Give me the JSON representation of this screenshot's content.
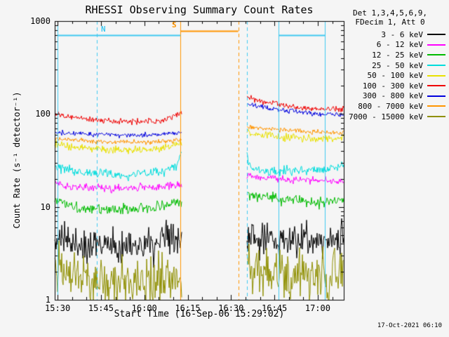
{
  "page": {
    "background": "#f5f5f5"
  },
  "chart_data": {
    "type": "line",
    "title": "RHESSI Observing Summary Count Rates",
    "xlabel": "Start Time (16-Sep-06 15:29:02)",
    "ylabel": "Count Rate (s⁻¹ detector⁻¹)",
    "generated_stamp": "17-Oct-2021 06:10",
    "x_domain_minutes_after_start": [
      0,
      100
    ],
    "x_minor_tick_step": 5,
    "x_ticks": [
      {
        "t": 1,
        "label": "15:30"
      },
      {
        "t": 16,
        "label": "15:45"
      },
      {
        "t": 31,
        "label": "16:00"
      },
      {
        "t": 46,
        "label": "16:15"
      },
      {
        "t": 61,
        "label": "16:30"
      },
      {
        "t": 76,
        "label": "16:45"
      },
      {
        "t": 91,
        "label": "17:00"
      }
    ],
    "y_scale": "log",
    "y_range": [
      1,
      1000
    ],
    "y_ticks": [
      {
        "v": 1,
        "label": "1"
      },
      {
        "v": 10,
        "label": "10"
      },
      {
        "v": 100,
        "label": "100"
      },
      {
        "v": 1000,
        "label": "1000"
      }
    ],
    "legend": {
      "det_line1": "Det 1,3,4,5,6,9,",
      "det_line2": "FDecim 1, Att 0",
      "entries": [
        {
          "label": "3 - 6 keV",
          "color": "#000000"
        },
        {
          "label": "6 - 12 keV",
          "color": "#ff00ff"
        },
        {
          "label": "12 - 25 keV",
          "color": "#00bb00"
        },
        {
          "label": "25 - 50 keV",
          "color": "#00dcdc"
        },
        {
          "label": "50 - 100 keV",
          "color": "#e8e000"
        },
        {
          "label": "100 - 300 keV",
          "color": "#ee0000"
        },
        {
          "label": "300 - 800 keV",
          "color": "#0000dd"
        },
        {
          "label": "800 - 7000 keV",
          "color": "#ff9500"
        },
        {
          "label": "7000 - 15000 keV",
          "color": "#8f8f00"
        }
      ]
    },
    "series": [
      {
        "name": "3 - 6 keV",
        "color": "#000000",
        "noise": 0.09,
        "segments": [
          [
            [
              0,
              4.3
            ],
            [
              15,
              3.9
            ],
            [
              30,
              3.8
            ],
            [
              44,
              4.3
            ]
          ],
          [
            [
              66.5,
              4.8
            ],
            [
              77,
              4.4
            ],
            [
              100,
              4.5
            ]
          ]
        ]
      },
      {
        "name": "6 - 12 keV",
        "color": "#ff00ff",
        "noise": 0.02,
        "segments": [
          [
            [
              0,
              19
            ],
            [
              4,
              16.5
            ],
            [
              20,
              15.8
            ],
            [
              35,
              16.3
            ],
            [
              44,
              17.5
            ]
          ],
          [
            [
              66.5,
              22
            ],
            [
              72,
              20.5
            ],
            [
              86,
              19.5
            ],
            [
              100,
              19
            ]
          ]
        ]
      },
      {
        "name": "12 - 25 keV",
        "color": "#00bb00",
        "noise": 0.03,
        "segments": [
          [
            [
              0,
              12
            ],
            [
              8,
              9.6
            ],
            [
              22,
              9.2
            ],
            [
              36,
              10
            ],
            [
              44,
              11.5
            ]
          ],
          [
            [
              66.5,
              13.5
            ],
            [
              77,
              12.2
            ],
            [
              91,
              11.2
            ],
            [
              100,
              11.8
            ]
          ]
        ]
      },
      {
        "name": "25 - 50 keV",
        "color": "#00dcdc",
        "noise": 0.025,
        "segments": [
          [
            [
              0,
              27
            ],
            [
              8,
              23.5
            ],
            [
              24,
              22
            ],
            [
              38,
              24
            ],
            [
              42.5,
              29
            ],
            [
              44,
              41
            ]
          ],
          [
            [
              66.5,
              36
            ],
            [
              68,
              26
            ],
            [
              77,
              24
            ],
            [
              86,
              24.5
            ],
            [
              95,
              26
            ],
            [
              100,
              29
            ]
          ]
        ]
      },
      {
        "name": "50 - 100 keV",
        "color": "#e8e000",
        "noise": 0.022,
        "segments": [
          [
            [
              0,
              48
            ],
            [
              10,
              43
            ],
            [
              25,
              41
            ],
            [
              38,
              43
            ],
            [
              44,
              50
            ]
          ],
          [
            [
              66.5,
              62
            ],
            [
              77,
              57
            ],
            [
              89,
              54
            ],
            [
              100,
              55
            ]
          ]
        ]
      },
      {
        "name": "100 - 300 keV",
        "color": "#ee0000",
        "noise": 0.015,
        "segments": [
          [
            [
              0,
              100
            ],
            [
              10,
              88
            ],
            [
              25,
              82
            ],
            [
              38,
              86
            ],
            [
              44,
              103
            ]
          ],
          [
            [
              66.5,
              150
            ],
            [
              74,
              132
            ],
            [
              84,
              118
            ],
            [
              93,
              112
            ],
            [
              100,
              113
            ]
          ]
        ]
      },
      {
        "name": "300 - 800 keV",
        "color": "#0000dd",
        "noise": 0.013,
        "segments": [
          [
            [
              0,
              63
            ],
            [
              12,
              60
            ],
            [
              30,
              58.5
            ],
            [
              44,
              63
            ]
          ],
          [
            [
              66.5,
              127
            ],
            [
              74,
              115
            ],
            [
              84,
              105
            ],
            [
              93,
              99
            ],
            [
              100,
              97
            ]
          ]
        ]
      },
      {
        "name": "800 - 7000 keV",
        "color": "#ff9500",
        "noise": 0.012,
        "segments": [
          [
            [
              0,
              54
            ],
            [
              15,
              50.5
            ],
            [
              32,
              49.5
            ],
            [
              44,
              52
            ]
          ],
          [
            [
              66.5,
              73
            ],
            [
              77,
              68
            ],
            [
              91,
              64
            ],
            [
              100,
              63
            ]
          ]
        ]
      },
      {
        "name": "7000 - 15000 keV",
        "color": "#8f8f00",
        "noise": 0.13,
        "segments": [
          [
            [
              0,
              1.9
            ],
            [
              20,
              1.6
            ],
            [
              44,
              1.7
            ]
          ],
          [
            [
              66.5,
              3.5
            ],
            [
              67.5,
              2.0
            ],
            [
              82,
              1.8
            ],
            [
              100,
              1.85
            ]
          ]
        ]
      }
    ],
    "event_lines": [
      {
        "t": 1,
        "color": "#3fc8f0",
        "style": "solid"
      },
      {
        "t": 14.5,
        "color": "#3fc8f0",
        "style": "dashed"
      },
      {
        "t": 43.5,
        "color": "#ff9500",
        "style": "solid"
      },
      {
        "t": 63.5,
        "color": "#ff9500",
        "style": "dashed"
      },
      {
        "t": 66.5,
        "color": "#3fc8f0",
        "style": "dashed"
      },
      {
        "t": 77.5,
        "color": "#3fc8f0",
        "style": "solid"
      },
      {
        "t": 93.5,
        "color": "#3fc8f0",
        "style": "solid"
      }
    ],
    "event_bars": [
      {
        "t0": 1,
        "t1": 43.5,
        "v": 700,
        "color": "#3fc8f0"
      },
      {
        "t0": 43.5,
        "t1": 63.5,
        "v": 780,
        "color": "#ff9500"
      },
      {
        "t0": 77.5,
        "t1": 93.5,
        "v": 700,
        "color": "#3fc8f0"
      }
    ],
    "event_labels": [
      {
        "text": "N",
        "t": 17,
        "v": 700,
        "color": "#3fc8f0"
      },
      {
        "text": "S",
        "t": 41.5,
        "v": 780,
        "color": "#ff9500"
      }
    ]
  }
}
